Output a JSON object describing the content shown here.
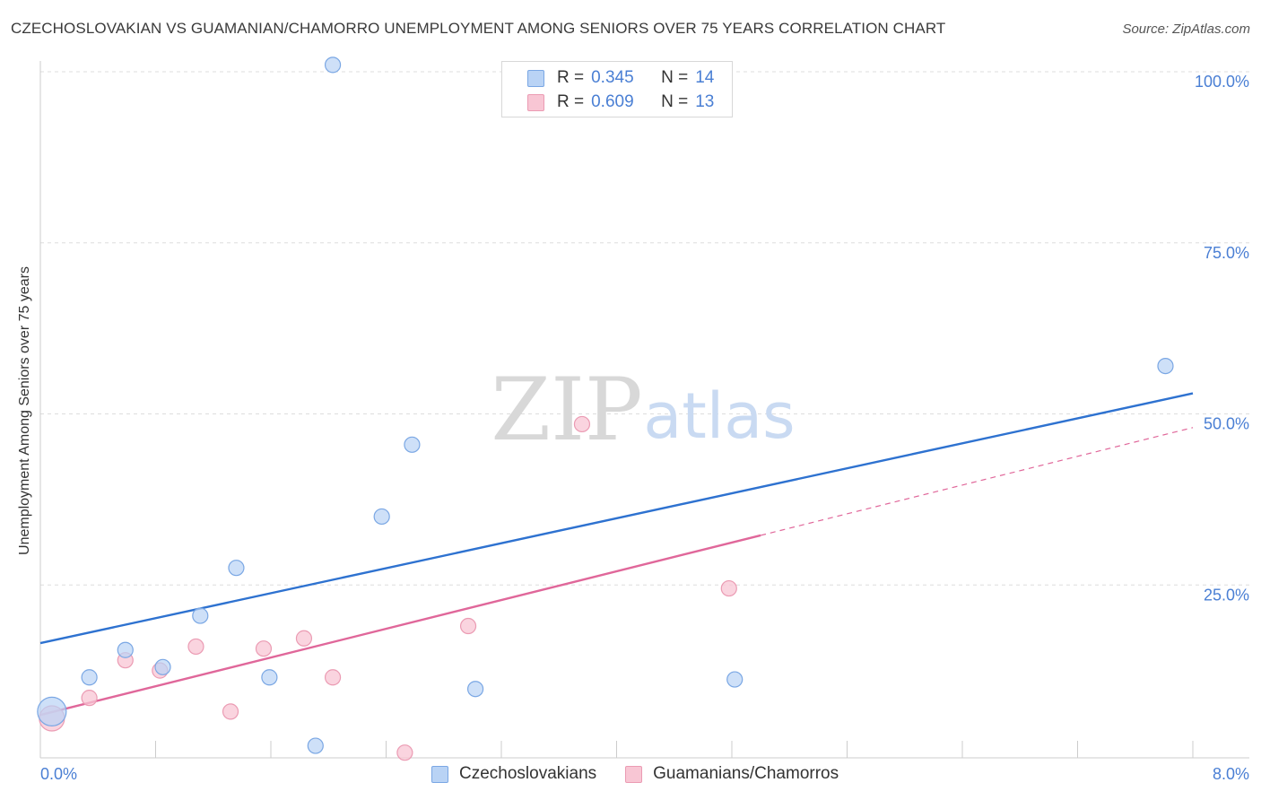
{
  "header": {
    "title": "CZECHOSLOVAKIAN VS GUAMANIAN/CHAMORRO UNEMPLOYMENT AMONG SENIORS OVER 75 YEARS CORRELATION CHART",
    "source": "Source: ZipAtlas.com"
  },
  "watermark": {
    "zip": "ZIP",
    "atlas": "atlas"
  },
  "colors": {
    "blue_fill": "#b9d3f5",
    "blue_stroke": "#7aa7e4",
    "blue_line": "#2e72d0",
    "pink_fill": "#f8c6d4",
    "pink_stroke": "#eb9bb3",
    "pink_line": "#e0679a",
    "axis_text": "#4a7fd4",
    "grid": "#dddddd"
  },
  "legend_top": {
    "rows": [
      {
        "r_label": "R =",
        "r_value": "0.345",
        "n_label": "N =",
        "n_value": "14"
      },
      {
        "r_label": "R =",
        "r_value": "0.609",
        "n_label": "N =",
        "n_value": "13"
      }
    ]
  },
  "chart_data": {
    "type": "scatter",
    "title": "CZECHOSLOVAKIAN VS GUAMANIAN/CHAMORRO UNEMPLOYMENT AMONG SENIORS OVER 75 YEARS CORRELATION CHART",
    "xlabel": "",
    "ylabel": "Unemployment Among Seniors over 75 years",
    "xlim": [
      0,
      8
    ],
    "ylim": [
      0,
      100
    ],
    "x_tick_labels": [
      "0.0%",
      "8.0%"
    ],
    "y_tick_labels": [
      "25.0%",
      "50.0%",
      "75.0%",
      "100.0%"
    ],
    "y_tick_values": [
      25,
      50,
      75,
      100
    ],
    "grid": true,
    "series": [
      {
        "name": "Czechoslovakians",
        "color": "blue",
        "points": [
          {
            "x": 0.08,
            "y": 6.5,
            "big": true
          },
          {
            "x": 0.34,
            "y": 11.5
          },
          {
            "x": 0.59,
            "y": 15.5
          },
          {
            "x": 0.85,
            "y": 13.0
          },
          {
            "x": 1.11,
            "y": 20.5
          },
          {
            "x": 1.36,
            "y": 27.5
          },
          {
            "x": 1.59,
            "y": 11.5
          },
          {
            "x": 1.91,
            "y": 1.5
          },
          {
            "x": 2.03,
            "y": 101.0
          },
          {
            "x": 2.37,
            "y": 35.0
          },
          {
            "x": 2.58,
            "y": 45.5
          },
          {
            "x": 3.02,
            "y": 9.8
          },
          {
            "x": 4.82,
            "y": 11.2
          },
          {
            "x": 7.81,
            "y": 57.0
          }
        ],
        "trend": {
          "x0": 0,
          "y0": 16.5,
          "x1": 8,
          "y1": 53.0
        }
      },
      {
        "name": "Guamanians/Chamorros",
        "color": "pink",
        "points": [
          {
            "x": 0.08,
            "y": 5.5,
            "big": true
          },
          {
            "x": 0.34,
            "y": 8.5
          },
          {
            "x": 0.59,
            "y": 14.0
          },
          {
            "x": 0.83,
            "y": 12.5
          },
          {
            "x": 1.08,
            "y": 16.0
          },
          {
            "x": 1.32,
            "y": 6.5
          },
          {
            "x": 1.55,
            "y": 15.7
          },
          {
            "x": 1.83,
            "y": 17.2
          },
          {
            "x": 2.03,
            "y": 11.5
          },
          {
            "x": 2.53,
            "y": 0.5
          },
          {
            "x": 2.97,
            "y": 19.0
          },
          {
            "x": 3.76,
            "y": 48.5
          },
          {
            "x": 4.78,
            "y": 24.5
          }
        ],
        "trend": {
          "x0": 0,
          "y0": 6.0,
          "x1": 8,
          "y1": 48.0,
          "solid_until_x": 5.0
        }
      }
    ]
  },
  "bottom_legend": {
    "items": [
      {
        "label": "Czechoslovakians"
      },
      {
        "label": "Guamanians/Chamorros"
      }
    ]
  }
}
